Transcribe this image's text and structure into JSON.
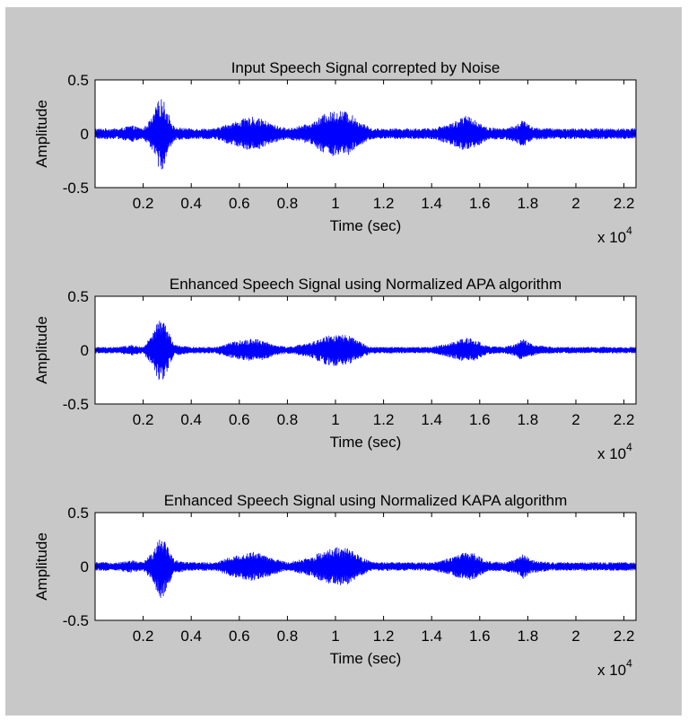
{
  "figure": {
    "background": "#c8c8c8"
  },
  "chart_data": [
    {
      "type": "line",
      "title": "Input Speech Signal correpted by Noise",
      "xlabel": "Time (sec)",
      "ylabel": "Amplitude",
      "x_exponent_label": "x 10",
      "x_exponent_power": "4",
      "xlim": [
        0,
        22500
      ],
      "ylim": [
        -0.5,
        0.5
      ],
      "xticks": [
        0.2,
        0.4,
        0.6,
        0.8,
        1,
        1.2,
        1.4,
        1.6,
        1.8,
        2,
        2.2
      ],
      "yticks": [
        -0.5,
        0,
        0.5
      ],
      "grid": false,
      "color": "#0000ff",
      "series": [
        {
          "x": [
            0,
            1000,
            1500,
            2000,
            2400,
            2600,
            2800,
            3000,
            3300,
            4000,
            5000,
            5600,
            6200,
            6600,
            7000,
            7500,
            8000,
            9000,
            9500,
            10000,
            10500,
            11000,
            11500,
            12000,
            13000,
            14000,
            14800,
            15400,
            15800,
            16300,
            17000,
            17500,
            17800,
            18200,
            19000,
            20000,
            21000,
            22500
          ],
          "y": [
            0.05,
            0.05,
            0.08,
            0.05,
            0.16,
            0.3,
            0.34,
            0.22,
            0.06,
            0.05,
            0.05,
            0.1,
            0.14,
            0.16,
            0.13,
            0.08,
            0.05,
            0.1,
            0.18,
            0.22,
            0.21,
            0.12,
            0.05,
            0.05,
            0.05,
            0.05,
            0.1,
            0.17,
            0.14,
            0.06,
            0.05,
            0.08,
            0.13,
            0.06,
            0.05,
            0.05,
            0.05,
            0.05
          ]
        }
      ]
    },
    {
      "type": "line",
      "title": "Enhanced Speech Signal using Normalized APA algorithm",
      "xlabel": "Time (sec)",
      "ylabel": "Amplitude",
      "x_exponent_label": "x 10",
      "x_exponent_power": "4",
      "xlim": [
        0,
        22500
      ],
      "ylim": [
        -0.5,
        0.5
      ],
      "xticks": [
        0.2,
        0.4,
        0.6,
        0.8,
        1,
        1.2,
        1.4,
        1.6,
        1.8,
        2,
        2.2
      ],
      "yticks": [
        -0.5,
        0,
        0.5
      ],
      "grid": false,
      "color": "#0000ff",
      "series": [
        {
          "x": [
            0,
            1000,
            1500,
            2000,
            2400,
            2600,
            2800,
            3000,
            3300,
            4000,
            5000,
            5600,
            6200,
            6600,
            7000,
            7500,
            8000,
            9000,
            9500,
            10000,
            10500,
            11000,
            11500,
            12000,
            13000,
            14000,
            14800,
            15400,
            15800,
            16300,
            17000,
            17500,
            17800,
            18200,
            19000,
            20000,
            21000,
            22500
          ],
          "y": [
            0.03,
            0.03,
            0.05,
            0.03,
            0.15,
            0.27,
            0.31,
            0.2,
            0.05,
            0.03,
            0.03,
            0.07,
            0.1,
            0.11,
            0.09,
            0.05,
            0.03,
            0.07,
            0.13,
            0.15,
            0.14,
            0.08,
            0.03,
            0.03,
            0.03,
            0.03,
            0.07,
            0.12,
            0.1,
            0.04,
            0.03,
            0.06,
            0.11,
            0.05,
            0.03,
            0.03,
            0.03,
            0.03
          ]
        }
      ]
    },
    {
      "type": "line",
      "title": "Enhanced Speech Signal using Normalized KAPA algorithm",
      "xlabel": "Time (sec)",
      "ylabel": "Amplitude",
      "x_exponent_label": "x 10",
      "x_exponent_power": "4",
      "xlim": [
        0,
        22500
      ],
      "ylim": [
        -0.5,
        0.5
      ],
      "xticks": [
        0.2,
        0.4,
        0.6,
        0.8,
        1,
        1.2,
        1.4,
        1.6,
        1.8,
        2,
        2.2
      ],
      "yticks": [
        -0.5,
        0,
        0.5
      ],
      "grid": false,
      "color": "#0000ff",
      "series": [
        {
          "x": [
            0,
            1000,
            1500,
            2000,
            2400,
            2600,
            2800,
            3000,
            3300,
            4000,
            5000,
            5600,
            6200,
            6600,
            7000,
            7500,
            8000,
            9000,
            9500,
            10000,
            10500,
            11000,
            11500,
            12000,
            13000,
            14000,
            14800,
            15400,
            15800,
            16300,
            17000,
            17500,
            17800,
            18200,
            19000,
            20000,
            21000,
            22500
          ],
          "y": [
            0.04,
            0.04,
            0.06,
            0.04,
            0.14,
            0.26,
            0.31,
            0.2,
            0.06,
            0.04,
            0.04,
            0.09,
            0.12,
            0.14,
            0.11,
            0.07,
            0.04,
            0.09,
            0.15,
            0.18,
            0.17,
            0.1,
            0.04,
            0.04,
            0.04,
            0.04,
            0.08,
            0.14,
            0.12,
            0.05,
            0.04,
            0.07,
            0.12,
            0.06,
            0.04,
            0.04,
            0.04,
            0.04
          ]
        }
      ]
    }
  ]
}
